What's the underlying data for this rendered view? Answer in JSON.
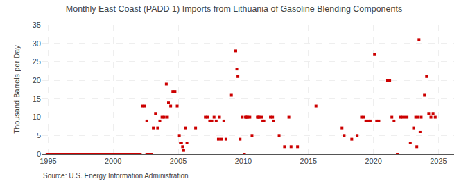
{
  "chart_data": {
    "type": "scatter",
    "title": "Monthly East Coast (PADD 1) Imports from Lithuania of Gasoline Blending Components",
    "ylabel": "Thousand Barrels per Day",
    "annotations": [
      "Source: U.S. Energy Information Administration"
    ],
    "color": "#cc0000",
    "marker": "square",
    "grid": true,
    "xlim": [
      1994.5,
      2026.2
    ],
    "ylim": [
      0,
      35
    ],
    "yticks": [
      0,
      5,
      10,
      15,
      20,
      25,
      30,
      35
    ],
    "xticks": [
      1995,
      2000,
      2005,
      2010,
      2015,
      2020,
      2025
    ],
    "x": [
      1994.917,
      1995.083,
      1995.25,
      1995.417,
      1995.583,
      1995.75,
      1995.917,
      1996.083,
      1996.25,
      1996.417,
      1996.583,
      1996.75,
      1996.917,
      1997.083,
      1997.25,
      1997.417,
      1997.583,
      1997.75,
      1997.917,
      1998.083,
      1998.25,
      1998.417,
      1998.583,
      1998.75,
      1998.917,
      1999.083,
      1999.25,
      1999.417,
      1999.583,
      1999.75,
      1999.917,
      2000.083,
      2000.25,
      2000.417,
      2000.583,
      2000.75,
      2000.917,
      2001.083,
      2001.25,
      2001.417,
      2001.583,
      2001.75,
      2001.917,
      2002.083,
      2002.583,
      2002.75,
      2002.917,
      2002.25,
      2002.417,
      2002.583,
      2003.083,
      2003.25,
      2003.417,
      2003.583,
      2003.75,
      2003.917,
      2004.083,
      2004.167,
      2004.25,
      2004.417,
      2004.583,
      2004.75,
      2004.917,
      2005.083,
      2005.167,
      2005.25,
      2005.333,
      2005.417,
      2005.583,
      2005.667,
      2006.333,
      2007.083,
      2007.25,
      2007.417,
      2007.583,
      2007.75,
      2007.917,
      2008.083,
      2008.167,
      2008.333,
      2008.5,
      2008.667,
      2009.083,
      2009.417,
      2009.5,
      2009.583,
      2009.75,
      2009.917,
      2010.083,
      2010.167,
      2010.25,
      2010.333,
      2010.5,
      2010.667,
      2011.083,
      2011.167,
      2011.25,
      2011.417,
      2011.5,
      2011.583,
      2012.083,
      2012.25,
      2012.333,
      2012.75,
      2013.167,
      2013.5,
      2013.667,
      2014.167,
      2015.583,
      2017.583,
      2017.75,
      2018.333,
      2018.75,
      2019.083,
      2019.25,
      2019.417,
      2019.583,
      2019.75,
      2020.083,
      2020.25,
      2020.417,
      2021.083,
      2021.25,
      2021.417,
      2021.583,
      2021.833,
      2022.083,
      2022.25,
      2022.417,
      2022.583,
      2022.833,
      2023.083,
      2023.25,
      2023.333,
      2023.417,
      2023.5,
      2023.583,
      2023.667,
      2023.917,
      2024.083,
      2024.25,
      2024.417,
      2024.583,
      2024.75
    ],
    "values": [
      0,
      0,
      0,
      0,
      0,
      0,
      0,
      0,
      0,
      0,
      0,
      0,
      0,
      0,
      0,
      0,
      0,
      0,
      0,
      0,
      0,
      0,
      0,
      0,
      0,
      0,
      0,
      0,
      0,
      0,
      0,
      0,
      0,
      0,
      0,
      0,
      0,
      0,
      0,
      0,
      0,
      0,
      0,
      0,
      0,
      0,
      0,
      13,
      13,
      9,
      7,
      11,
      7,
      9,
      10,
      10,
      19,
      10,
      14,
      13,
      17,
      17,
      13,
      5,
      3,
      3,
      2,
      1,
      7,
      3,
      7,
      10,
      10,
      9,
      9,
      10,
      9,
      4,
      10,
      4,
      9,
      4,
      16,
      28,
      23,
      21,
      4,
      10,
      0,
      10,
      10,
      10,
      10,
      5,
      10,
      10,
      10,
      10,
      9,
      9,
      10,
      10,
      9,
      5,
      2,
      10,
      2,
      2,
      13,
      7,
      5,
      4,
      5,
      10,
      10,
      9,
      9,
      9,
      27,
      9,
      9,
      20,
      20,
      10,
      9,
      0,
      10,
      10,
      10,
      10,
      3,
      7,
      10,
      2,
      10,
      31,
      6,
      10,
      16,
      21,
      11,
      10,
      11,
      10
    ]
  }
}
